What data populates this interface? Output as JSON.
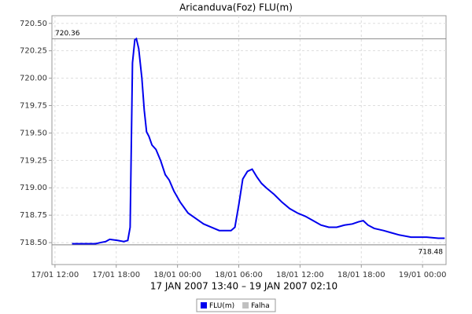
{
  "chart_data": {
    "type": "line",
    "title": "Aricanduva(Foz) FLU(m)",
    "x_label": "17 JAN 2007 13:40 – 19 JAN 2007 02:10",
    "x": [
      13.67,
      15.98,
      16.44,
      16.98,
      17.36,
      18.13,
      18.74,
      19.13,
      19.36,
      19.59,
      19.82,
      19.97,
      20.2,
      20.51,
      20.74,
      20.97,
      21.2,
      21.5,
      21.89,
      22.34,
      22.8,
      23.19,
      23.65,
      24.26,
      25.03,
      25.79,
      26.56,
      27.33,
      28.09,
      29.24,
      29.62,
      30.01,
      30.39,
      30.85,
      31.31,
      31.77,
      32.23,
      32.69,
      33.46,
      34.22,
      34.99,
      35.75,
      36.52,
      37.29,
      38.05,
      38.82,
      39.59,
      40.35,
      41.12,
      41.73,
      42.19,
      42.65,
      43.26,
      44.18,
      44.94,
      45.71,
      46.87,
      48.4,
      49.55,
      50.17
    ],
    "series": [
      {
        "name": "FLU(m)",
        "color": "#0000ee",
        "values": [
          718.49,
          718.49,
          718.5,
          718.51,
          718.53,
          718.52,
          718.51,
          718.52,
          718.64,
          720.14,
          720.35,
          720.36,
          720.27,
          720.0,
          719.71,
          719.51,
          719.47,
          719.39,
          719.35,
          719.25,
          719.12,
          719.07,
          718.97,
          718.87,
          718.77,
          718.72,
          718.67,
          718.64,
          718.61,
          718.61,
          718.64,
          718.85,
          719.08,
          719.15,
          719.17,
          719.1,
          719.04,
          719.0,
          718.94,
          718.87,
          718.81,
          718.77,
          718.74,
          718.7,
          718.66,
          718.64,
          718.64,
          718.66,
          718.67,
          718.69,
          718.7,
          718.66,
          718.63,
          718.61,
          718.59,
          718.57,
          718.55,
          718.55,
          718.54,
          718.54
        ]
      }
    ],
    "extra_legend": [
      {
        "name": "Falha",
        "color": "#c0c0c0"
      }
    ],
    "reference_lines": [
      720.36,
      718.48
    ],
    "xlim": [
      11.7,
      50.3
    ],
    "ylim": [
      718.3,
      720.57
    ],
    "xticks": [
      {
        "value": 12,
        "label": "17/01 12:00"
      },
      {
        "value": 18,
        "label": "17/01 18:00"
      },
      {
        "value": 24,
        "label": "18/01 00:00"
      },
      {
        "value": 30,
        "label": "18/01 06:00"
      },
      {
        "value": 36,
        "label": "18/01 12:00"
      },
      {
        "value": 42,
        "label": "18/01 18:00"
      },
      {
        "value": 48,
        "label": "19/01 00:00"
      }
    ],
    "yticks": [
      {
        "value": 718.5,
        "label": "718.50"
      },
      {
        "value": 718.75,
        "label": "718.75"
      },
      {
        "value": 719,
        "label": "719.00"
      },
      {
        "value": 719.25,
        "label": "719.25"
      },
      {
        "value": 719.5,
        "label": "719.50"
      },
      {
        "value": 719.75,
        "label": "719.75"
      },
      {
        "value": 720,
        "label": "720.00"
      },
      {
        "value": 720.25,
        "label": "720.25"
      },
      {
        "value": 720.5,
        "label": "720.50"
      }
    ],
    "grid": true
  }
}
